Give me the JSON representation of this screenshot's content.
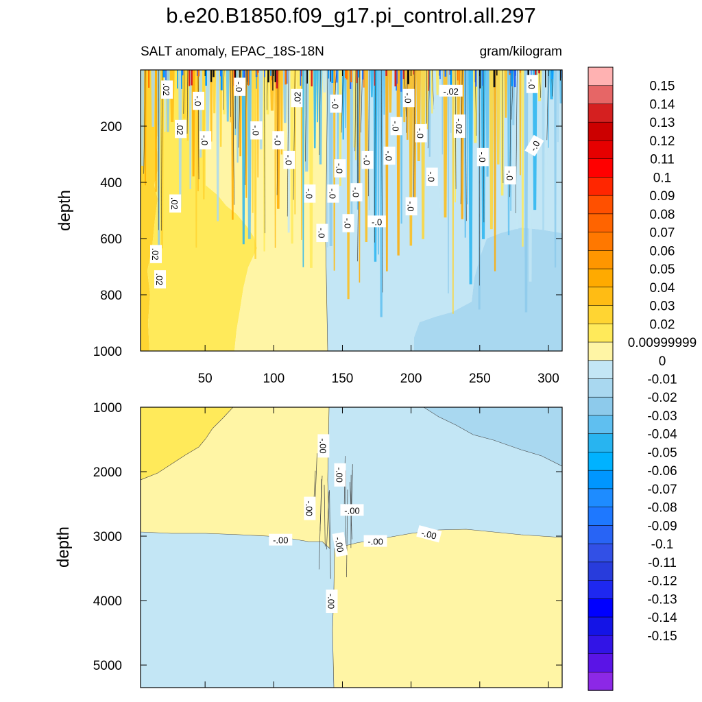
{
  "chart_data": {
    "type": "heatmap",
    "title": "b.e20.B1850.f09_g17.pi_control.all.297",
    "subtitle_left": "SALT anomaly, EPAC_18S-18N",
    "subtitle_right": "gram/kilogram",
    "ylabel": "depth",
    "panels": [
      {
        "name": "upper",
        "xlim": [
          3,
          310
        ],
        "ylim": [
          1000,
          0
        ],
        "x_ticks": [
          "50",
          "100",
          "150",
          "200",
          "250",
          "300"
        ],
        "x_tick_values": [
          50,
          100,
          150,
          200,
          250,
          300
        ],
        "y_ticks": [
          "200",
          "400",
          "600",
          "800",
          "1000"
        ],
        "y_tick_values": [
          200,
          400,
          600,
          800,
          1000
        ],
        "regions": [
          {
            "x_from": 3,
            "x_to": 138,
            "anomaly": 0.01
          },
          {
            "x_from": 138,
            "x_to": 310,
            "anomaly": -0.01
          }
        ]
      },
      {
        "name": "lower",
        "xlim": [
          3,
          310
        ],
        "ylim": [
          5350,
          1000
        ],
        "y_ticks": [
          "1000",
          "2000",
          "3000",
          "4000",
          "5000"
        ],
        "y_tick_values": [
          1000,
          2000,
          3000,
          4000,
          5000
        ],
        "regions": []
      }
    ],
    "contour_labels_upper": [
      {
        "text": ".02",
        "x": 22,
        "y": 70,
        "rot": 90
      },
      {
        "text": "-.0",
        "x": 45,
        "y": 110,
        "rot": 90
      },
      {
        "text": "-.0",
        "x": 75,
        "y": 60,
        "rot": 90
      },
      {
        "text": ".02",
        "x": 117,
        "y": 100,
        "rot": -90
      },
      {
        "text": "-.0",
        "x": 145,
        "y": 120,
        "rot": 90
      },
      {
        "text": "-.0",
        "x": 198,
        "y": 100,
        "rot": 90
      },
      {
        "text": "-.02",
        "x": 229,
        "y": 75,
        "rot": 0
      },
      {
        "text": "-.0",
        "x": 288,
        "y": 50,
        "rot": 90
      },
      {
        "text": ".02",
        "x": 32,
        "y": 210,
        "rot": 90
      },
      {
        "text": "-.0",
        "x": 50,
        "y": 250,
        "rot": 90
      },
      {
        "text": "-.0",
        "x": 87,
        "y": 215,
        "rot": 90
      },
      {
        "text": "-.0",
        "x": 103,
        "y": 250,
        "rot": 90
      },
      {
        "text": "-.0",
        "x": 189,
        "y": 200,
        "rot": 90
      },
      {
        "text": "-.0",
        "x": 207,
        "y": 225,
        "rot": 90
      },
      {
        "text": "-.02",
        "x": 235,
        "y": 200,
        "rot": 90
      },
      {
        "text": "-.0",
        "x": 290,
        "y": 270,
        "rot": -60
      },
      {
        "text": "-.0",
        "x": 111,
        "y": 320,
        "rot": 90
      },
      {
        "text": "-.0",
        "x": 148,
        "y": 350,
        "rot": 90
      },
      {
        "text": "-.0",
        "x": 168,
        "y": 320,
        "rot": 90
      },
      {
        "text": "-.0",
        "x": 184,
        "y": 305,
        "rot": 90
      },
      {
        "text": "-.0",
        "x": 215,
        "y": 380,
        "rot": 90
      },
      {
        "text": "-.0",
        "x": 252,
        "y": 310,
        "rot": 90
      },
      {
        "text": "-.0",
        "x": 272,
        "y": 375,
        "rot": 90
      },
      {
        "text": "-.0",
        "x": 126,
        "y": 440,
        "rot": 90
      },
      {
        "text": "-.0",
        "x": 143,
        "y": 440,
        "rot": 90
      },
      {
        "text": "-.0",
        "x": 160,
        "y": 435,
        "rot": 90
      },
      {
        "text": ".02",
        "x": 28,
        "y": 475,
        "rot": 90
      },
      {
        "text": "-.0",
        "x": 200,
        "y": 485,
        "rot": 90
      },
      {
        "text": "-.0",
        "x": 154,
        "y": 545,
        "rot": 90
      },
      {
        "text": "-.0",
        "x": 175,
        "y": 540,
        "rot": 0
      },
      {
        "text": "-.0",
        "x": 135,
        "y": 580,
        "rot": 90
      },
      {
        "text": ".02",
        "x": 14,
        "y": 655,
        "rot": 90
      },
      {
        "text": ".02",
        "x": 17,
        "y": 745,
        "rot": 90
      }
    ],
    "contour_labels_lower": [
      {
        "text": "-.00",
        "x": 136,
        "y": 1600,
        "rot": 90
      },
      {
        "text": "-.00",
        "x": 148,
        "y": 2050,
        "rot": 90
      },
      {
        "text": "-.00",
        "x": 126,
        "y": 2570,
        "rot": 90
      },
      {
        "text": "-.00",
        "x": 157,
        "y": 2600,
        "rot": 0
      },
      {
        "text": "-.00",
        "x": 105,
        "y": 3060,
        "rot": 0
      },
      {
        "text": "-.00",
        "x": 148,
        "y": 3130,
        "rot": 80
      },
      {
        "text": "-.00",
        "x": 174,
        "y": 3080,
        "rot": 0
      },
      {
        "text": "-.00",
        "x": 213,
        "y": 2970,
        "rot": 15
      },
      {
        "text": "-.00",
        "x": 142,
        "y": 4010,
        "rot": 90
      }
    ],
    "colorbar": {
      "colors": [
        "#ffb2b2",
        "#e66666",
        "#d52020",
        "#cc0000",
        "#e60000",
        "#ff0000",
        "#ff2600",
        "#ff5000",
        "#ff6400",
        "#ff7800",
        "#ff9600",
        "#ffaa00",
        "#ffbc14",
        "#ffd532",
        "#ffea5a",
        "#fff5a5",
        "#c3e6f5",
        "#a9d8f0",
        "#8dcaeb",
        "#5fbff0",
        "#28b4f0",
        "#00b2ff",
        "#0096ff",
        "#1e8cff",
        "#1e78ff",
        "#2864f5",
        "#3250e6",
        "#283cdc",
        "#1e28f0",
        "#0000ff",
        "#1414e6",
        "#3214e6",
        "#5a14e6",
        "#8c28e6"
      ],
      "labels": [
        "0.15",
        "0.14",
        "0.13",
        "0.12",
        "0.11",
        "0.1",
        "0.09",
        "0.08",
        "0.07",
        "0.06",
        "0.05",
        "0.04",
        "0.03",
        "0.02",
        "0.00999999",
        "0",
        "-0.01",
        "-0.02",
        "-0.03",
        "-0.04",
        "-0.05",
        "-0.06",
        "-0.07",
        "-0.08",
        "-0.09",
        "-0.1",
        "-0.11",
        "-0.12",
        "-0.13",
        "-0.14",
        "-0.15"
      ]
    }
  }
}
